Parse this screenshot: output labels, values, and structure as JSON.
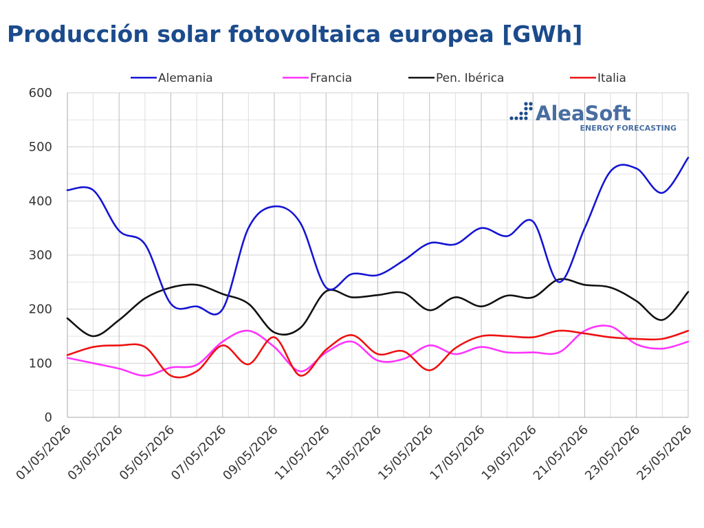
{
  "title": "Producción solar fotovoltaica europea [GWh]",
  "logo": {
    "brand": "AleaSoft",
    "tagline": "ENERGY FORECASTING",
    "color": "#1b4b8c"
  },
  "chart_data": {
    "type": "line",
    "title": "Producción solar fotovoltaica europea [GWh]",
    "xlabel": "",
    "ylabel": "",
    "ylim": [
      0,
      600
    ],
    "yticks": [
      0,
      100,
      200,
      300,
      400,
      500,
      600
    ],
    "xtick_labels": [
      "01/05/2026",
      "03/05/2026",
      "05/05/2026",
      "07/05/2026",
      "09/05/2026",
      "11/05/2026",
      "13/05/2026",
      "15/05/2026",
      "17/05/2026",
      "19/05/2026",
      "21/05/2026",
      "23/05/2026",
      "25/05/2026"
    ],
    "grid": true,
    "legend_position": "top",
    "x": [
      "01/05/2026",
      "02/05/2026",
      "03/05/2026",
      "04/05/2026",
      "05/05/2026",
      "06/05/2026",
      "07/05/2026",
      "08/05/2026",
      "09/05/2026",
      "10/05/2026",
      "11/05/2026",
      "12/05/2026",
      "13/05/2026",
      "14/05/2026",
      "15/05/2026",
      "16/05/2026",
      "17/05/2026",
      "18/05/2026",
      "19/05/2026",
      "20/05/2026",
      "21/05/2026",
      "22/05/2026",
      "23/05/2026",
      "24/05/2026",
      "25/05/2026"
    ],
    "series": [
      {
        "name": "Alemania",
        "color": "#1414d4",
        "values": [
          420,
          420,
          345,
          320,
          210,
          205,
          200,
          350,
          390,
          360,
          240,
          265,
          263,
          290,
          322,
          320,
          350,
          335,
          362,
          250,
          350,
          455,
          460,
          415,
          480
        ]
      },
      {
        "name": "Francia",
        "color": "#ff33ff",
        "values": [
          110,
          100,
          90,
          77,
          92,
          97,
          140,
          160,
          130,
          85,
          120,
          140,
          105,
          108,
          133,
          117,
          130,
          120,
          120,
          120,
          160,
          168,
          135,
          127,
          140
        ]
      },
      {
        "name": "Pen. Ibérica",
        "color": "#111111",
        "values": [
          183,
          150,
          180,
          220,
          240,
          245,
          228,
          210,
          157,
          165,
          233,
          222,
          226,
          230,
          198,
          222,
          205,
          225,
          222,
          255,
          245,
          240,
          215,
          180,
          232
        ]
      },
      {
        "name": "Italia",
        "color": "#ee1111",
        "values": [
          115,
          130,
          133,
          130,
          77,
          85,
          133,
          98,
          148,
          77,
          125,
          152,
          117,
          122,
          87,
          128,
          150,
          150,
          148,
          160,
          155,
          148,
          145,
          145,
          160
        ]
      }
    ]
  }
}
